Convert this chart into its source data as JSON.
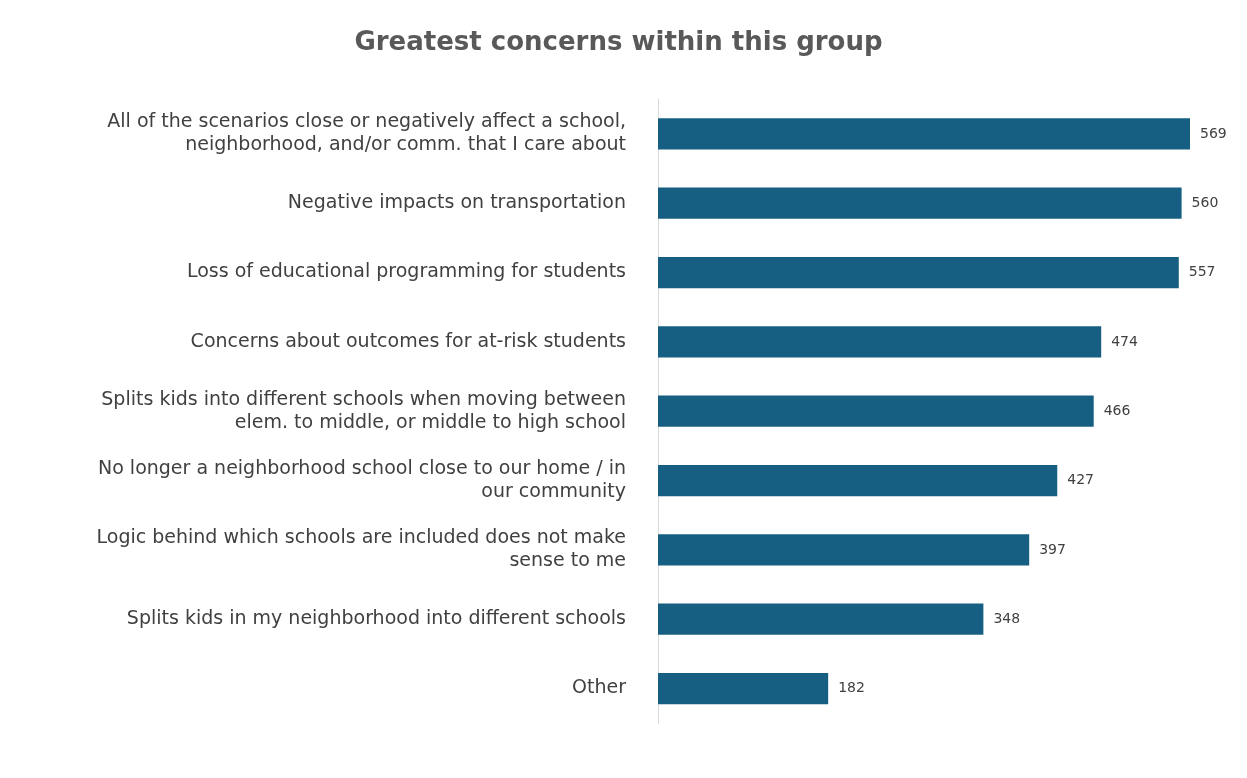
{
  "chart_data": {
    "type": "bar",
    "orientation": "horizontal",
    "title": "Greatest concerns within this group",
    "categories": [
      "All of the scenarios close or negatively affect a school, neighborhood, and/or comm. that I care about",
      "Negative impacts on transportation",
      "Loss of educational programming for students",
      "Concerns about outcomes for at-risk students",
      "Splits kids into different schools when moving between elem. to middle, or middle to high school",
      "No longer a neighborhood school close to our home / in our community",
      "Logic behind which schools are included does not make sense to me",
      "Splits kids in my neighborhood into different schools",
      "Other"
    ],
    "values": [
      569,
      560,
      557,
      474,
      466,
      427,
      397,
      348,
      182
    ],
    "color": "#175f82",
    "data_labels": true,
    "grid": false,
    "legend": false
  }
}
